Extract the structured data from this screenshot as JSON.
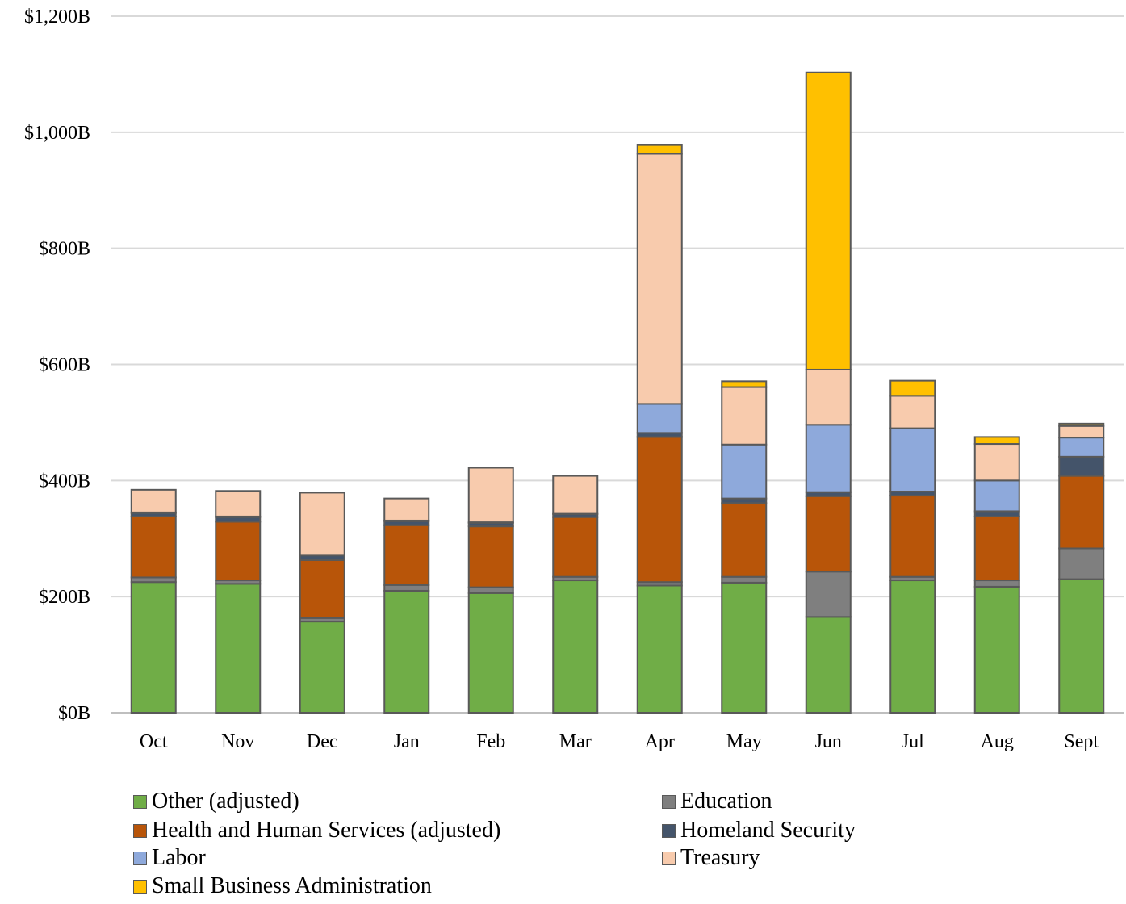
{
  "chart_data": {
    "type": "bar",
    "stacked": true,
    "categories": [
      "Oct",
      "Nov",
      "Dec",
      "Jan",
      "Feb",
      "Mar",
      "Apr",
      "May",
      "Jun",
      "Jul",
      "Aug",
      "Sept"
    ],
    "ylim": [
      0,
      1200
    ],
    "ytick_values": [
      0,
      200,
      400,
      600,
      800,
      1000,
      1200
    ],
    "ytick_labels": [
      "$0B",
      "$200B",
      "$400B",
      "$600B",
      "$800B",
      "$1,000B",
      "$1,200B"
    ],
    "grid": true,
    "legend_position": "bottom",
    "series": [
      {
        "name": "Other (adjusted)",
        "color": "#70AD47",
        "values": [
          225,
          222,
          157,
          210,
          206,
          228,
          219,
          224,
          165,
          228,
          217,
          230
        ]
      },
      {
        "name": "Education",
        "color": "#7F7F7F",
        "values": [
          8,
          6,
          6,
          10,
          10,
          6,
          6,
          10,
          78,
          6,
          11,
          53
        ]
      },
      {
        "name": "Health and Human Services (adjusted)",
        "color": "#B85509",
        "values": [
          105,
          101,
          100,
          103,
          105,
          103,
          250,
          127,
          130,
          140,
          110,
          125
        ]
      },
      {
        "name": "Homeland Security",
        "color": "#44546A",
        "values": [
          6,
          8,
          8,
          7,
          6,
          5,
          7,
          8,
          7,
          7,
          9,
          33
        ]
      },
      {
        "name": "Labor",
        "color": "#8EA9DB",
        "values": [
          1,
          1,
          1,
          1,
          1,
          2,
          50,
          93,
          116,
          109,
          53,
          33
        ]
      },
      {
        "name": "Treasury",
        "color": "#F8CBAD",
        "values": [
          39,
          44,
          107,
          38,
          94,
          64,
          431,
          99,
          95,
          56,
          63,
          20
        ]
      },
      {
        "name": "Small Business Administration",
        "color": "#FFC000",
        "values": [
          0,
          0,
          0,
          0,
          0,
          0,
          15,
          10,
          512,
          26,
          12,
          4
        ]
      }
    ]
  }
}
